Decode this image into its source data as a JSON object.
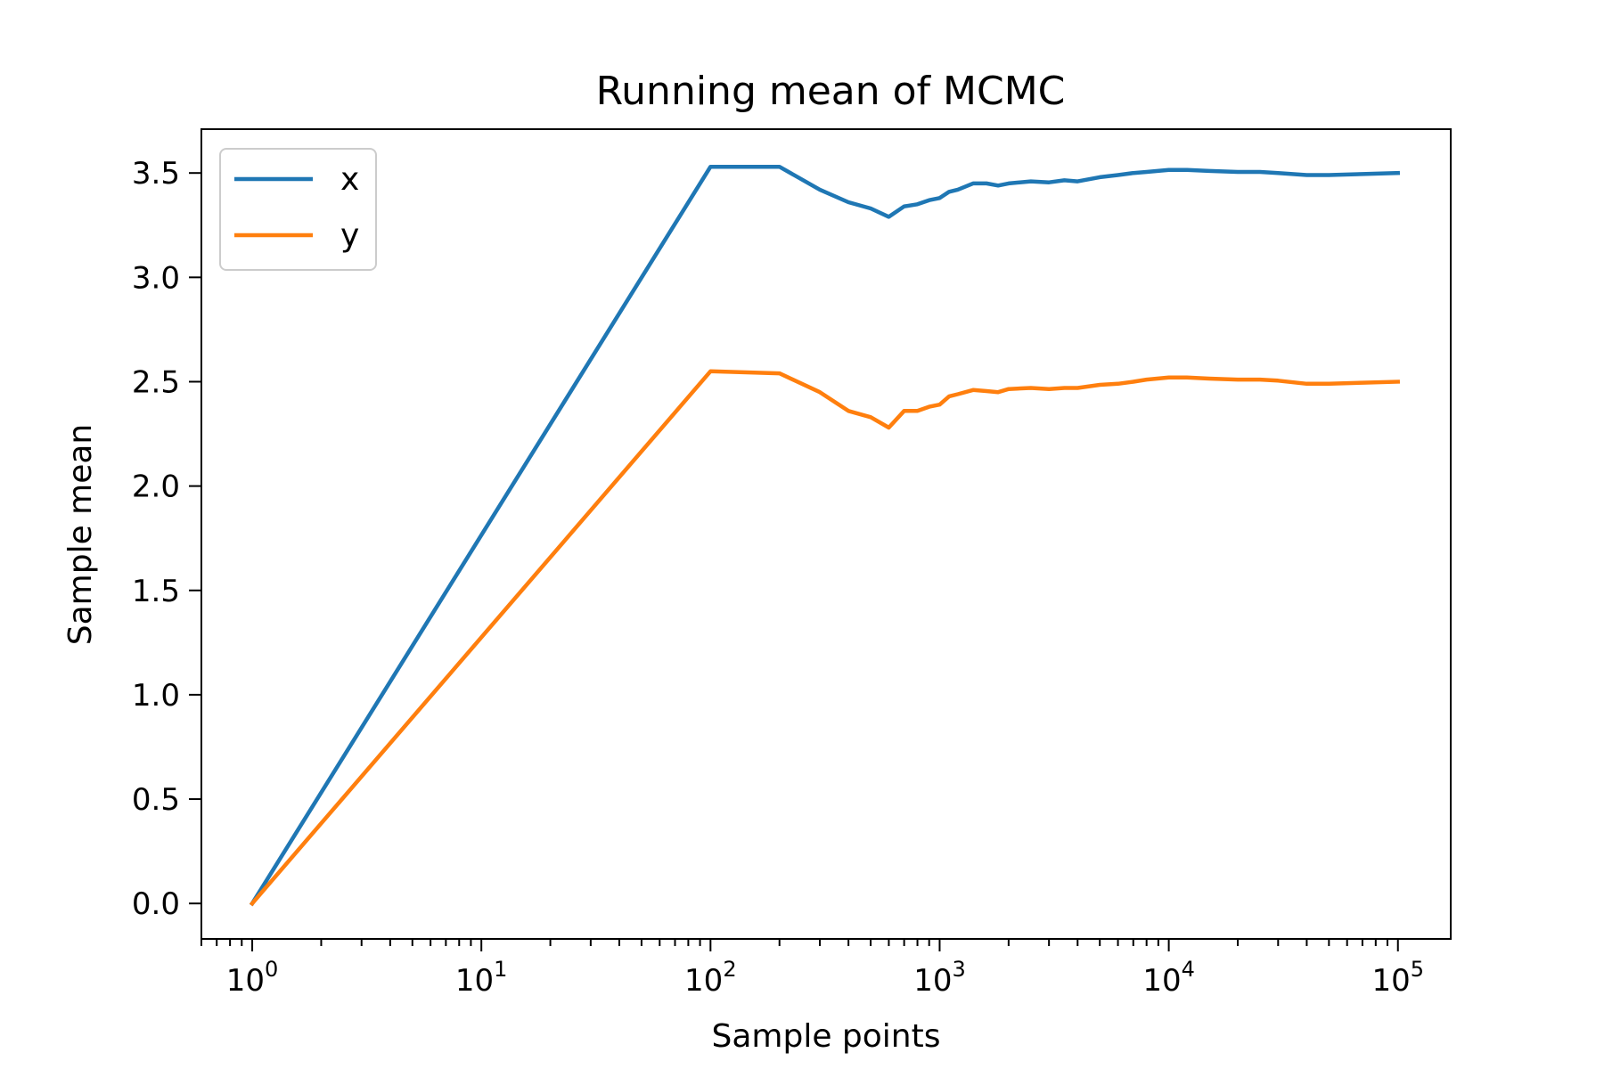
{
  "chart_data": {
    "type": "line",
    "title": "Running mean of MCMC",
    "xlabel": "Sample points",
    "ylabel": "Sample mean",
    "xscale": "log",
    "xlim": [
      0.6,
      170000
    ],
    "ylim": [
      -0.17,
      3.71
    ],
    "xticks": [
      {
        "value": 1,
        "base": "10",
        "exp": "0"
      },
      {
        "value": 10,
        "base": "10",
        "exp": "1"
      },
      {
        "value": 100,
        "base": "10",
        "exp": "2"
      },
      {
        "value": 1000,
        "base": "10",
        "exp": "3"
      },
      {
        "value": 10000,
        "base": "10",
        "exp": "4"
      },
      {
        "value": 100000,
        "base": "10",
        "exp": "5"
      }
    ],
    "yticks": [
      {
        "value": 0.0,
        "label": "0.0"
      },
      {
        "value": 0.5,
        "label": "0.5"
      },
      {
        "value": 1.0,
        "label": "1.0"
      },
      {
        "value": 1.5,
        "label": "1.5"
      },
      {
        "value": 2.0,
        "label": "2.0"
      },
      {
        "value": 2.5,
        "label": "2.5"
      },
      {
        "value": 3.0,
        "label": "3.0"
      },
      {
        "value": 3.5,
        "label": "3.5"
      }
    ],
    "legend_position": "upper-left",
    "grid": false,
    "series": [
      {
        "name": "x",
        "color": "#1f77b4",
        "points": [
          [
            1,
            0.0
          ],
          [
            100,
            3.53
          ],
          [
            200,
            3.53
          ],
          [
            300,
            3.42
          ],
          [
            400,
            3.36
          ],
          [
            500,
            3.33
          ],
          [
            600,
            3.29
          ],
          [
            700,
            3.34
          ],
          [
            800,
            3.35
          ],
          [
            900,
            3.37
          ],
          [
            1000,
            3.38
          ],
          [
            1100,
            3.41
          ],
          [
            1200,
            3.42
          ],
          [
            1400,
            3.45
          ],
          [
            1600,
            3.45
          ],
          [
            1800,
            3.44
          ],
          [
            2000,
            3.45
          ],
          [
            2500,
            3.46
          ],
          [
            3000,
            3.455
          ],
          [
            3500,
            3.465
          ],
          [
            4000,
            3.46
          ],
          [
            5000,
            3.48
          ],
          [
            6000,
            3.49
          ],
          [
            7000,
            3.5
          ],
          [
            8000,
            3.505
          ],
          [
            10000,
            3.515
          ],
          [
            12000,
            3.515
          ],
          [
            15000,
            3.51
          ],
          [
            20000,
            3.505
          ],
          [
            25000,
            3.505
          ],
          [
            30000,
            3.5
          ],
          [
            40000,
            3.49
          ],
          [
            50000,
            3.49
          ],
          [
            70000,
            3.495
          ],
          [
            100000,
            3.5
          ]
        ]
      },
      {
        "name": "y",
        "color": "#ff7f0e",
        "points": [
          [
            1,
            0.0
          ],
          [
            100,
            2.55
          ],
          [
            200,
            2.54
          ],
          [
            300,
            2.45
          ],
          [
            400,
            2.36
          ],
          [
            500,
            2.33
          ],
          [
            600,
            2.28
          ],
          [
            700,
            2.36
          ],
          [
            800,
            2.36
          ],
          [
            900,
            2.38
          ],
          [
            1000,
            2.39
          ],
          [
            1100,
            2.43
          ],
          [
            1200,
            2.44
          ],
          [
            1400,
            2.46
          ],
          [
            1600,
            2.455
          ],
          [
            1800,
            2.45
          ],
          [
            2000,
            2.465
          ],
          [
            2500,
            2.47
          ],
          [
            3000,
            2.465
          ],
          [
            3500,
            2.47
          ],
          [
            4000,
            2.47
          ],
          [
            5000,
            2.485
          ],
          [
            6000,
            2.49
          ],
          [
            7000,
            2.5
          ],
          [
            8000,
            2.51
          ],
          [
            10000,
            2.52
          ],
          [
            12000,
            2.52
          ],
          [
            15000,
            2.515
          ],
          [
            20000,
            2.51
          ],
          [
            25000,
            2.51
          ],
          [
            30000,
            2.505
          ],
          [
            40000,
            2.49
          ],
          [
            50000,
            2.49
          ],
          [
            70000,
            2.495
          ],
          [
            100000,
            2.5
          ]
        ]
      }
    ]
  }
}
